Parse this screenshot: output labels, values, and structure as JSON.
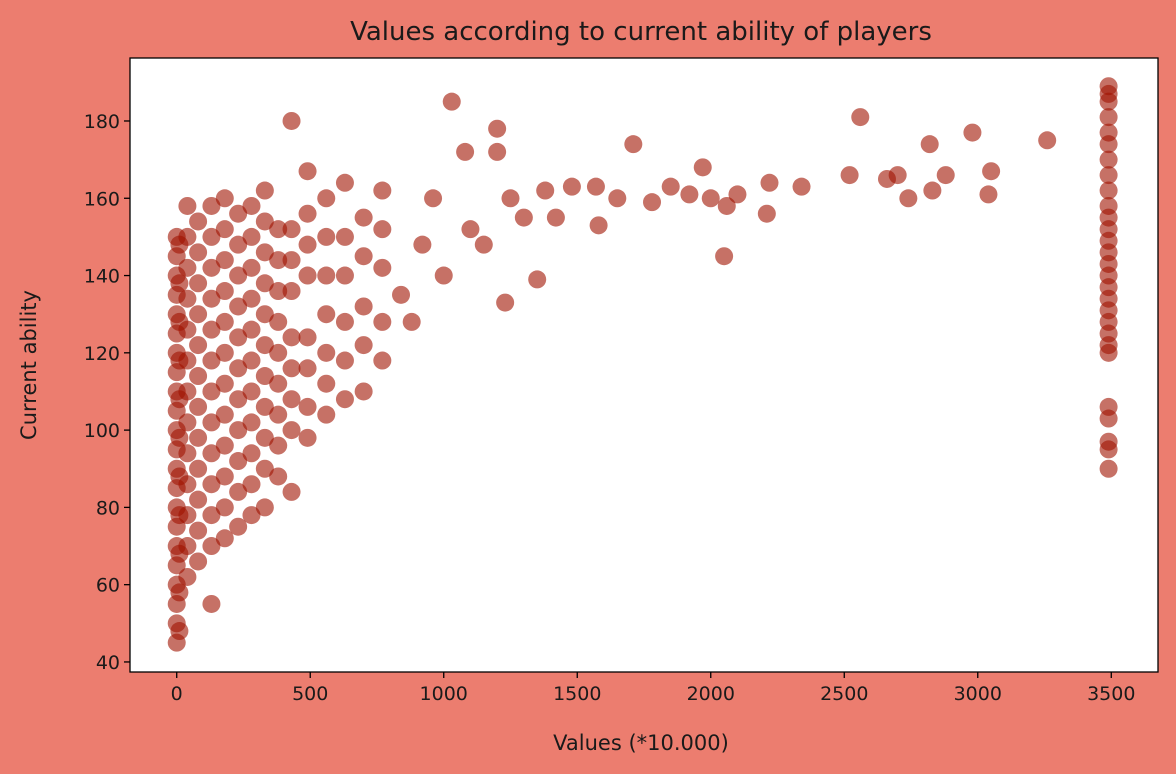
{
  "chart_data": {
    "type": "scatter",
    "title": "Values according to current ability of players",
    "x_label": "Values (*10.000)",
    "y_label": "Current ability",
    "color": "#a01200",
    "xlim": [
      -175,
      3675
    ],
    "xticks": [
      0,
      500,
      1000,
      1500,
      2000,
      2500,
      3000,
      3500
    ],
    "ylim": [
      37.4,
      196.3
    ],
    "yticks": [
      40,
      60,
      80,
      100,
      120,
      140,
      160,
      180
    ],
    "grid": false,
    "x": [
      0,
      0,
      0,
      0,
      0,
      0,
      0,
      0,
      0,
      0,
      0,
      0,
      0,
      0,
      0,
      0,
      0,
      0,
      0,
      0,
      0,
      0,
      10,
      10,
      10,
      10,
      10,
      10,
      10,
      10,
      10,
      10,
      10,
      40,
      40,
      40,
      40,
      40,
      40,
      40,
      40,
      40,
      40,
      40,
      40,
      40,
      80,
      80,
      80,
      80,
      80,
      80,
      80,
      80,
      80,
      80,
      80,
      80,
      130,
      130,
      130,
      130,
      130,
      130,
      130,
      130,
      130,
      130,
      130,
      130,
      130,
      180,
      180,
      180,
      180,
      180,
      180,
      180,
      180,
      180,
      180,
      180,
      180,
      230,
      230,
      230,
      230,
      230,
      230,
      230,
      230,
      230,
      230,
      230,
      280,
      280,
      280,
      280,
      280,
      280,
      280,
      280,
      280,
      280,
      280,
      330,
      330,
      330,
      330,
      330,
      330,
      330,
      330,
      330,
      330,
      330,
      380,
      380,
      380,
      380,
      380,
      380,
      380,
      380,
      380,
      430,
      430,
      430,
      430,
      430,
      430,
      430,
      430,
      430,
      490,
      490,
      490,
      490,
      490,
      490,
      490,
      490,
      560,
      560,
      560,
      560,
      560,
      560,
      560,
      630,
      630,
      630,
      630,
      630,
      630,
      700,
      700,
      700,
      700,
      700,
      770,
      770,
      770,
      770,
      770,
      840,
      880,
      920,
      960,
      1000,
      1030,
      1080,
      1100,
      1150,
      1200,
      1200,
      1230,
      1250,
      1300,
      1350,
      1380,
      1420,
      1480,
      1570,
      1580,
      1650,
      1710,
      1780,
      1850,
      1920,
      1970,
      2000,
      2050,
      2060,
      2100,
      2210,
      2220,
      2340,
      2520,
      2560,
      2660,
      2700,
      2740,
      2820,
      2830,
      2880,
      2980,
      3040,
      3050,
      3260,
      3490,
      3490,
      3490,
      3490,
      3490,
      3490,
      3490,
      3490,
      3490,
      3490,
      3490,
      3490,
      3490,
      3490,
      3490,
      3490,
      3490,
      3490,
      3490,
      3490,
      3490,
      3490,
      3490,
      3490,
      3490,
      3490,
      3490,
      3490
    ],
    "values": [
      45,
      50,
      55,
      60,
      65,
      70,
      75,
      80,
      85,
      90,
      95,
      100,
      105,
      110,
      115,
      120,
      125,
      130,
      135,
      140,
      145,
      150,
      48,
      58,
      68,
      78,
      88,
      98,
      108,
      118,
      128,
      138,
      148,
      62,
      70,
      78,
      86,
      94,
      102,
      110,
      118,
      126,
      134,
      142,
      150,
      158,
      66,
      74,
      82,
      90,
      98,
      106,
      114,
      122,
      130,
      138,
      146,
      154,
      55,
      70,
      78,
      86,
      94,
      102,
      110,
      118,
      126,
      134,
      142,
      150,
      158,
      72,
      80,
      88,
      96,
      104,
      112,
      120,
      128,
      136,
      144,
      152,
      160,
      75,
      84,
      92,
      100,
      108,
      116,
      124,
      132,
      140,
      148,
      156,
      78,
      86,
      94,
      102,
      110,
      118,
      126,
      134,
      142,
      150,
      158,
      80,
      90,
      98,
      106,
      114,
      122,
      130,
      138,
      146,
      154,
      162,
      88,
      96,
      104,
      112,
      120,
      128,
      136,
      144,
      152,
      84,
      100,
      108,
      116,
      124,
      136,
      144,
      152,
      180,
      98,
      106,
      116,
      124,
      140,
      148,
      156,
      167,
      104,
      112,
      120,
      130,
      140,
      150,
      160,
      108,
      118,
      128,
      140,
      150,
      164,
      110,
      122,
      132,
      145,
      155,
      118,
      128,
      142,
      152,
      162,
      135,
      128,
      148,
      160,
      140,
      185,
      172,
      152,
      148,
      178,
      172,
      133,
      160,
      155,
      139,
      162,
      155,
      163,
      163,
      153,
      160,
      174,
      159,
      163,
      161,
      168,
      160,
      145,
      158,
      161,
      156,
      164,
      163,
      166,
      181,
      165,
      166,
      160,
      174,
      162,
      166,
      177,
      161,
      167,
      175,
      90,
      95,
      97,
      103,
      106,
      120,
      122,
      125,
      128,
      131,
      134,
      137,
      140,
      143,
      146,
      149,
      152,
      155,
      158,
      162,
      166,
      170,
      174,
      177,
      181,
      185,
      187,
      189
    ]
  }
}
